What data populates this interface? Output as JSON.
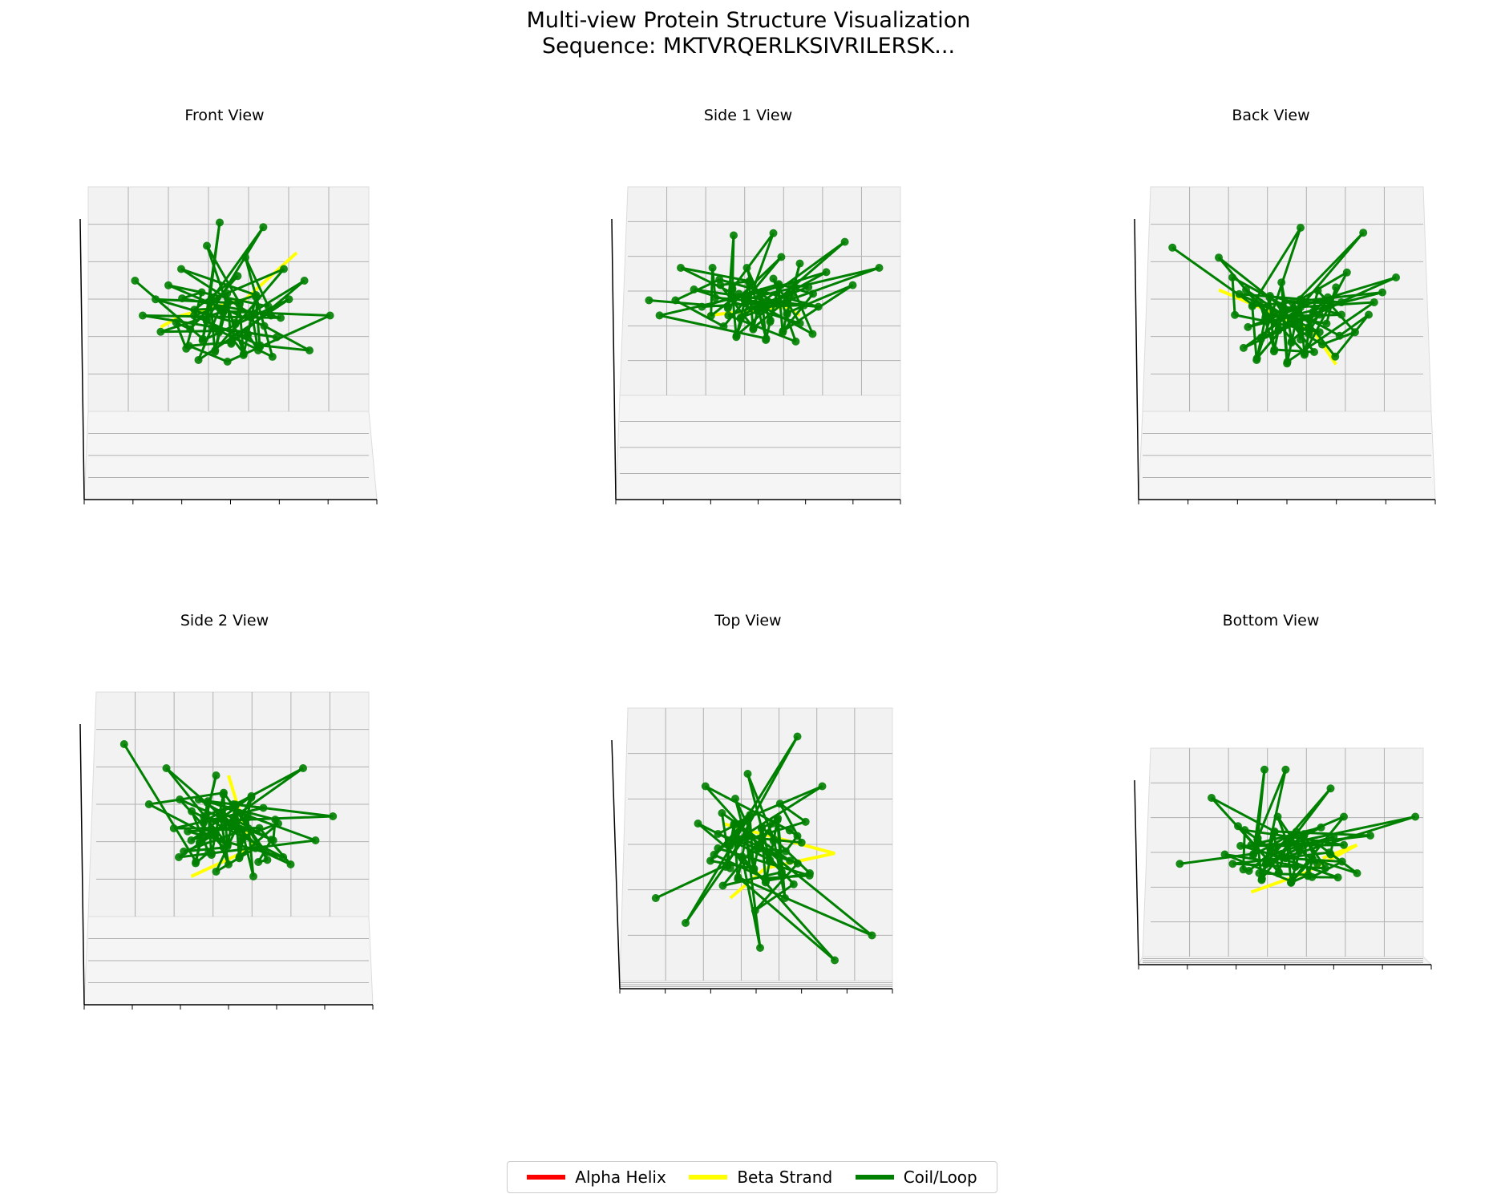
{
  "chart_data": {
    "type": "scatter",
    "subtype": "3d-line-scatter-multiview",
    "title_line1": "Multi-view Protein Structure Visualization",
    "title_line2": "Sequence: MKTVRQERLKSIVRILERSK...",
    "panels": [
      {
        "id": "front",
        "title": "Front View",
        "beta": [
          [
            0.22,
            0.5
          ],
          [
            0.3,
            0.55
          ],
          [
            0.55,
            0.62
          ],
          [
            0.75,
            0.82
          ]
        ],
        "points": [
          [
            0.12,
            0.7
          ],
          [
            0.45,
            0.95
          ],
          [
            0.62,
            0.93
          ],
          [
            0.7,
            0.75
          ],
          [
            0.48,
            0.6
          ],
          [
            0.22,
            0.48
          ],
          [
            0.88,
            0.55
          ],
          [
            0.33,
            0.42
          ],
          [
            0.78,
            0.7
          ],
          [
            0.2,
            0.62
          ],
          [
            0.4,
            0.85
          ],
          [
            0.5,
            0.45
          ],
          [
            0.6,
            0.4
          ],
          [
            0.3,
            0.75
          ],
          [
            0.35,
            0.55
          ],
          [
            0.8,
            0.4
          ],
          [
            0.25,
            0.68
          ],
          [
            0.55,
            0.8
          ],
          [
            0.42,
            0.5
          ],
          [
            0.15,
            0.55
          ],
          [
            0.65,
            0.55
          ],
          [
            0.38,
            0.65
          ],
          [
            0.28,
            0.52
          ],
          [
            0.52,
            0.72
          ],
          [
            0.45,
            0.58
          ],
          [
            0.72,
            0.62
          ]
        ]
      },
      {
        "id": "side1",
        "title": "Side 1 View",
        "beta": [
          [
            0.3,
            0.48
          ],
          [
            0.45,
            0.5
          ],
          [
            0.6,
            0.52
          ],
          [
            0.65,
            0.48
          ]
        ],
        "points": [
          [
            0.08,
            0.55
          ],
          [
            0.4,
            0.85
          ],
          [
            0.55,
            0.86
          ],
          [
            0.82,
            0.82
          ],
          [
            0.95,
            0.7
          ],
          [
            0.2,
            0.7
          ],
          [
            0.35,
            0.62
          ],
          [
            0.6,
            0.55
          ],
          [
            0.75,
            0.68
          ],
          [
            0.12,
            0.48
          ],
          [
            0.45,
            0.7
          ],
          [
            0.5,
            0.58
          ],
          [
            0.28,
            0.52
          ],
          [
            0.7,
            0.58
          ],
          [
            0.85,
            0.62
          ],
          [
            0.65,
            0.72
          ],
          [
            0.38,
            0.48
          ],
          [
            0.55,
            0.65
          ],
          [
            0.25,
            0.6
          ],
          [
            0.48,
            0.52
          ],
          [
            0.62,
            0.62
          ],
          [
            0.42,
            0.58
          ],
          [
            0.32,
            0.7
          ],
          [
            0.72,
            0.52
          ],
          [
            0.18,
            0.55
          ],
          [
            0.58,
            0.75
          ]
        ]
      },
      {
        "id": "back",
        "title": "Back View",
        "beta": [
          [
            0.25,
            0.65
          ],
          [
            0.4,
            0.58
          ],
          [
            0.6,
            0.48
          ],
          [
            0.68,
            0.35
          ]
        ],
        "points": [
          [
            0.08,
            0.82
          ],
          [
            0.55,
            0.9
          ],
          [
            0.78,
            0.88
          ],
          [
            0.9,
            0.7
          ],
          [
            0.7,
            0.55
          ],
          [
            0.6,
            0.4
          ],
          [
            0.4,
            0.6
          ],
          [
            0.25,
            0.78
          ],
          [
            0.82,
            0.6
          ],
          [
            0.48,
            0.68
          ],
          [
            0.62,
            0.55
          ],
          [
            0.55,
            0.45
          ],
          [
            0.72,
            0.72
          ],
          [
            0.35,
            0.65
          ],
          [
            0.65,
            0.62
          ],
          [
            0.58,
            0.5
          ],
          [
            0.75,
            0.48
          ],
          [
            0.45,
            0.55
          ],
          [
            0.68,
            0.66
          ],
          [
            0.52,
            0.6
          ],
          [
            0.8,
            0.55
          ],
          [
            0.3,
            0.7
          ],
          [
            0.62,
            0.48
          ],
          [
            0.7,
            0.6
          ],
          [
            0.55,
            0.58
          ],
          [
            0.85,
            0.64
          ]
        ]
      },
      {
        "id": "side2",
        "title": "Side 2 View",
        "beta": [
          [
            0.5,
            0.72
          ],
          [
            0.55,
            0.55
          ],
          [
            0.6,
            0.42
          ],
          [
            0.35,
            0.3
          ]
        ],
        "points": [
          [
            0.08,
            0.85
          ],
          [
            0.45,
            0.72
          ],
          [
            0.8,
            0.75
          ],
          [
            0.92,
            0.55
          ],
          [
            0.85,
            0.45
          ],
          [
            0.3,
            0.38
          ],
          [
            0.5,
            0.35
          ],
          [
            0.65,
            0.4
          ],
          [
            0.18,
            0.6
          ],
          [
            0.25,
            0.75
          ],
          [
            0.4,
            0.55
          ],
          [
            0.55,
            0.45
          ],
          [
            0.7,
            0.52
          ],
          [
            0.6,
            0.3
          ],
          [
            0.35,
            0.45
          ],
          [
            0.45,
            0.32
          ],
          [
            0.75,
            0.35
          ],
          [
            0.28,
            0.5
          ],
          [
            0.52,
            0.6
          ],
          [
            0.62,
            0.36
          ],
          [
            0.38,
            0.62
          ],
          [
            0.68,
            0.45
          ],
          [
            0.48,
            0.42
          ],
          [
            0.58,
            0.5
          ],
          [
            0.72,
            0.38
          ],
          [
            0.42,
            0.4
          ]
        ]
      },
      {
        "id": "top",
        "title": "Top View",
        "beta": [
          [
            0.38,
            0.3
          ],
          [
            0.52,
            0.42
          ],
          [
            0.8,
            0.48
          ],
          [
            0.35,
            0.6
          ]
        ],
        "points": [
          [
            0.08,
            0.3
          ],
          [
            0.65,
            0.95
          ],
          [
            0.75,
            0.75
          ],
          [
            0.95,
            0.15
          ],
          [
            0.8,
            0.05
          ],
          [
            0.5,
            0.1
          ],
          [
            0.2,
            0.2
          ],
          [
            0.3,
            0.45
          ],
          [
            0.4,
            0.7
          ],
          [
            0.55,
            0.6
          ],
          [
            0.7,
            0.4
          ],
          [
            0.25,
            0.6
          ],
          [
            0.45,
            0.8
          ],
          [
            0.6,
            0.3
          ],
          [
            0.35,
            0.35
          ],
          [
            0.5,
            0.5
          ],
          [
            0.65,
            0.55
          ],
          [
            0.28,
            0.75
          ],
          [
            0.48,
            0.25
          ],
          [
            0.4,
            0.55
          ],
          [
            0.58,
            0.68
          ],
          [
            0.33,
            0.5
          ],
          [
            0.52,
            0.38
          ],
          [
            0.45,
            0.62
          ],
          [
            0.62,
            0.45
          ],
          [
            0.38,
            0.42
          ]
        ]
      },
      {
        "id": "bottom",
        "title": "Bottom View",
        "beta": [
          [
            0.35,
            0.3
          ],
          [
            0.55,
            0.4
          ],
          [
            0.75,
            0.55
          ],
          [
            0.62,
            0.48
          ]
        ],
        "points": [
          [
            0.08,
            0.45
          ],
          [
            0.4,
            0.95
          ],
          [
            0.48,
            0.95
          ],
          [
            0.65,
            0.85
          ],
          [
            0.97,
            0.7
          ],
          [
            0.8,
            0.6
          ],
          [
            0.2,
            0.8
          ],
          [
            0.3,
            0.65
          ],
          [
            0.55,
            0.55
          ],
          [
            0.7,
            0.7
          ],
          [
            0.25,
            0.5
          ],
          [
            0.45,
            0.7
          ],
          [
            0.6,
            0.45
          ],
          [
            0.38,
            0.4
          ],
          [
            0.5,
            0.35
          ],
          [
            0.75,
            0.4
          ],
          [
            0.35,
            0.55
          ],
          [
            0.55,
            0.6
          ],
          [
            0.28,
            0.45
          ],
          [
            0.65,
            0.5
          ],
          [
            0.42,
            0.5
          ],
          [
            0.58,
            0.38
          ],
          [
            0.48,
            0.48
          ],
          [
            0.7,
            0.55
          ],
          [
            0.32,
            0.42
          ],
          [
            0.52,
            0.62
          ]
        ]
      }
    ],
    "legend": [
      {
        "label": "Alpha Helix",
        "color": "#ff0000"
      },
      {
        "label": "Beta Strand",
        "color": "#ffff00"
      },
      {
        "label": "Coil/Loop",
        "color": "#008000"
      }
    ],
    "colors": {
      "coil": "#008000",
      "beta": "#ffff00",
      "helix": "#ff0000",
      "grid": "#b0b0b0",
      "pane": "#f2f2f2"
    }
  }
}
